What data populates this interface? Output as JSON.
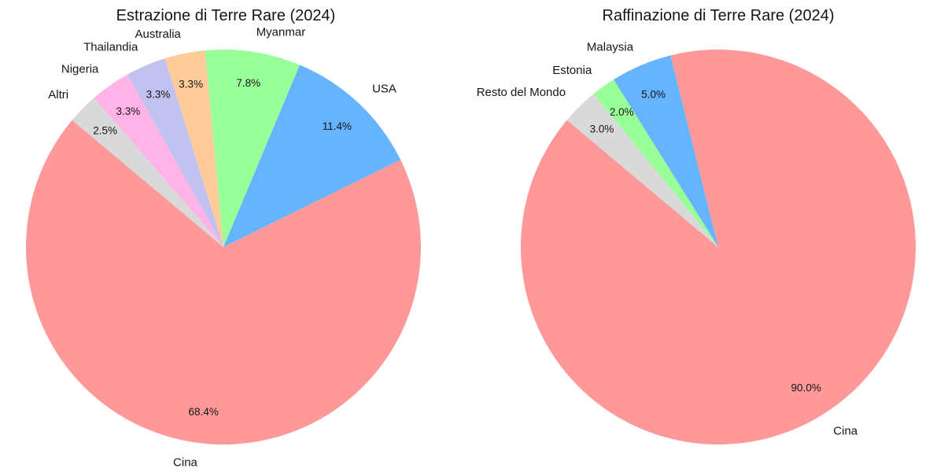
{
  "figure": {
    "background": "#ffffff",
    "text_color": "#151515"
  },
  "chart_data": [
    {
      "type": "pie",
      "title": "Estrazione di Terre Rare (2024)",
      "labels": [
        "Cina",
        "USA",
        "Myanmar",
        "Australia",
        "Thailandia",
        "Nigeria",
        "Altri"
      ],
      "values": [
        68.4,
        11.4,
        7.8,
        3.3,
        3.3,
        3.3,
        2.5
      ],
      "pct_labels": [
        "68.4%",
        "11.4%",
        "7.8%",
        "3.3%",
        "3.3%",
        "3.3%",
        "2.5%"
      ],
      "colors": [
        "#ff9999",
        "#66b3ff",
        "#99ff99",
        "#ffcc99",
        "#c2c2f0",
        "#ffb3e6",
        "#d9d9d9"
      ],
      "legend": "none",
      "startangle": 140,
      "counterclock": true,
      "center": [
        284,
        314
      ],
      "radius": 251,
      "label_distance": 1.1,
      "pct_distance": 0.84
    },
    {
      "type": "pie",
      "title": "Raffinazione di Terre Rare (2024)",
      "labels": [
        "Cina",
        "Malaysia",
        "Estonia",
        "Resto del Mondo"
      ],
      "values": [
        90.0,
        5.0,
        2.0,
        3.0
      ],
      "pct_labels": [
        "90.0%",
        "5.0%",
        "2.0%",
        "3.0%"
      ],
      "colors": [
        "#ff9999",
        "#66b3ff",
        "#99ff99",
        "#d9d9d9"
      ],
      "legend": "none",
      "startangle": 140,
      "counterclock": true,
      "center": [
        913,
        314
      ],
      "radius": 251,
      "label_distance": 1.1,
      "pct_distance": 0.84
    }
  ]
}
